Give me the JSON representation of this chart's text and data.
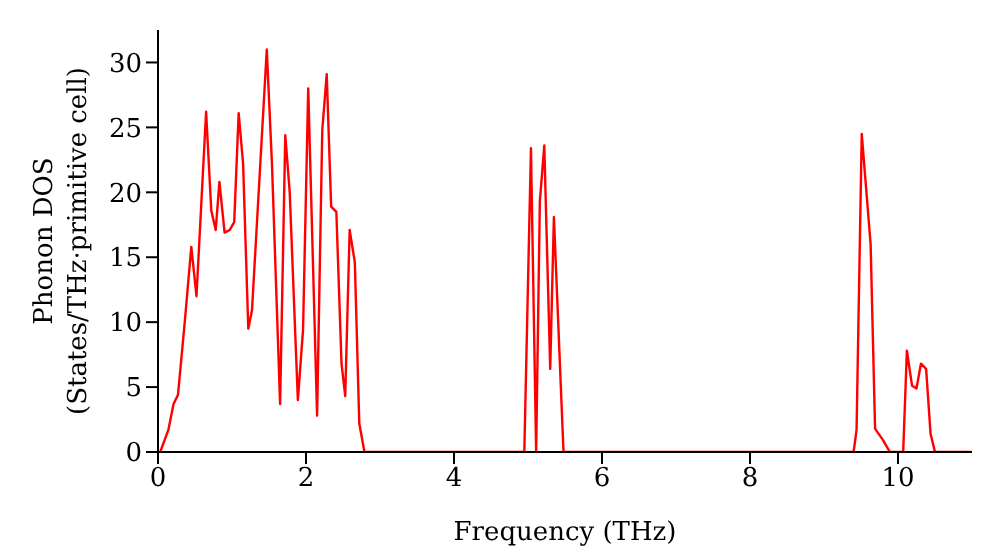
{
  "chart_data": {
    "type": "line",
    "xlabel": "Frequency (THz)",
    "ylabel": "Phonon DOS\n(States/THz·primitive cell)",
    "x": [
      0.03,
      0.14,
      0.21,
      0.27,
      0.36,
      0.45,
      0.52,
      0.65,
      0.72,
      0.78,
      0.83,
      0.9,
      0.97,
      1.03,
      1.09,
      1.15,
      1.22,
      1.27,
      1.47,
      1.54,
      1.65,
      1.72,
      1.78,
      1.89,
      1.96,
      2.03,
      2.15,
      2.22,
      2.28,
      2.34,
      2.41,
      2.48,
      2.53,
      2.59,
      2.66,
      2.72,
      2.79,
      4.95,
      5.04,
      5.11,
      5.16,
      5.22,
      5.3,
      5.35,
      5.48,
      9.4,
      9.44,
      9.51,
      9.63,
      9.69,
      9.8,
      9.89,
      10.07,
      10.12,
      10.19,
      10.25,
      10.31,
      10.38,
      10.44,
      10.5,
      11
    ],
    "series": [
      {
        "color": "#ff0000",
        "values": [
          0,
          1.7,
          3.7,
          4.4,
          9.9,
          15.8,
          12,
          26.2,
          18.6,
          17.1,
          20.8,
          16.9,
          17.1,
          17.7,
          26.1,
          22.2,
          9.5,
          10.9,
          31,
          22.2,
          3.7,
          24.4,
          20,
          4,
          9.4,
          28,
          2.8,
          24.8,
          29.1,
          18.9,
          18.5,
          6.8,
          4.3,
          17.1,
          14.6,
          2.2,
          0,
          0,
          23.4,
          0,
          19.3,
          23.6,
          6.4,
          18.1,
          0,
          0,
          1.7,
          24.5,
          16,
          1.8,
          0.9,
          0,
          0,
          7.8,
          5.1,
          4.9,
          6.8,
          6.4,
          1.4,
          0,
          0
        ]
      }
    ],
    "xlim": [
      0,
      11
    ],
    "xticks": [
      0,
      2,
      4,
      6,
      8,
      10
    ],
    "ylim": [
      0,
      32.5
    ],
    "yticks": [
      0,
      5,
      10,
      15,
      20,
      25,
      30
    ],
    "grid": false,
    "legend": false,
    "marker": "none",
    "line_style": "solid"
  }
}
